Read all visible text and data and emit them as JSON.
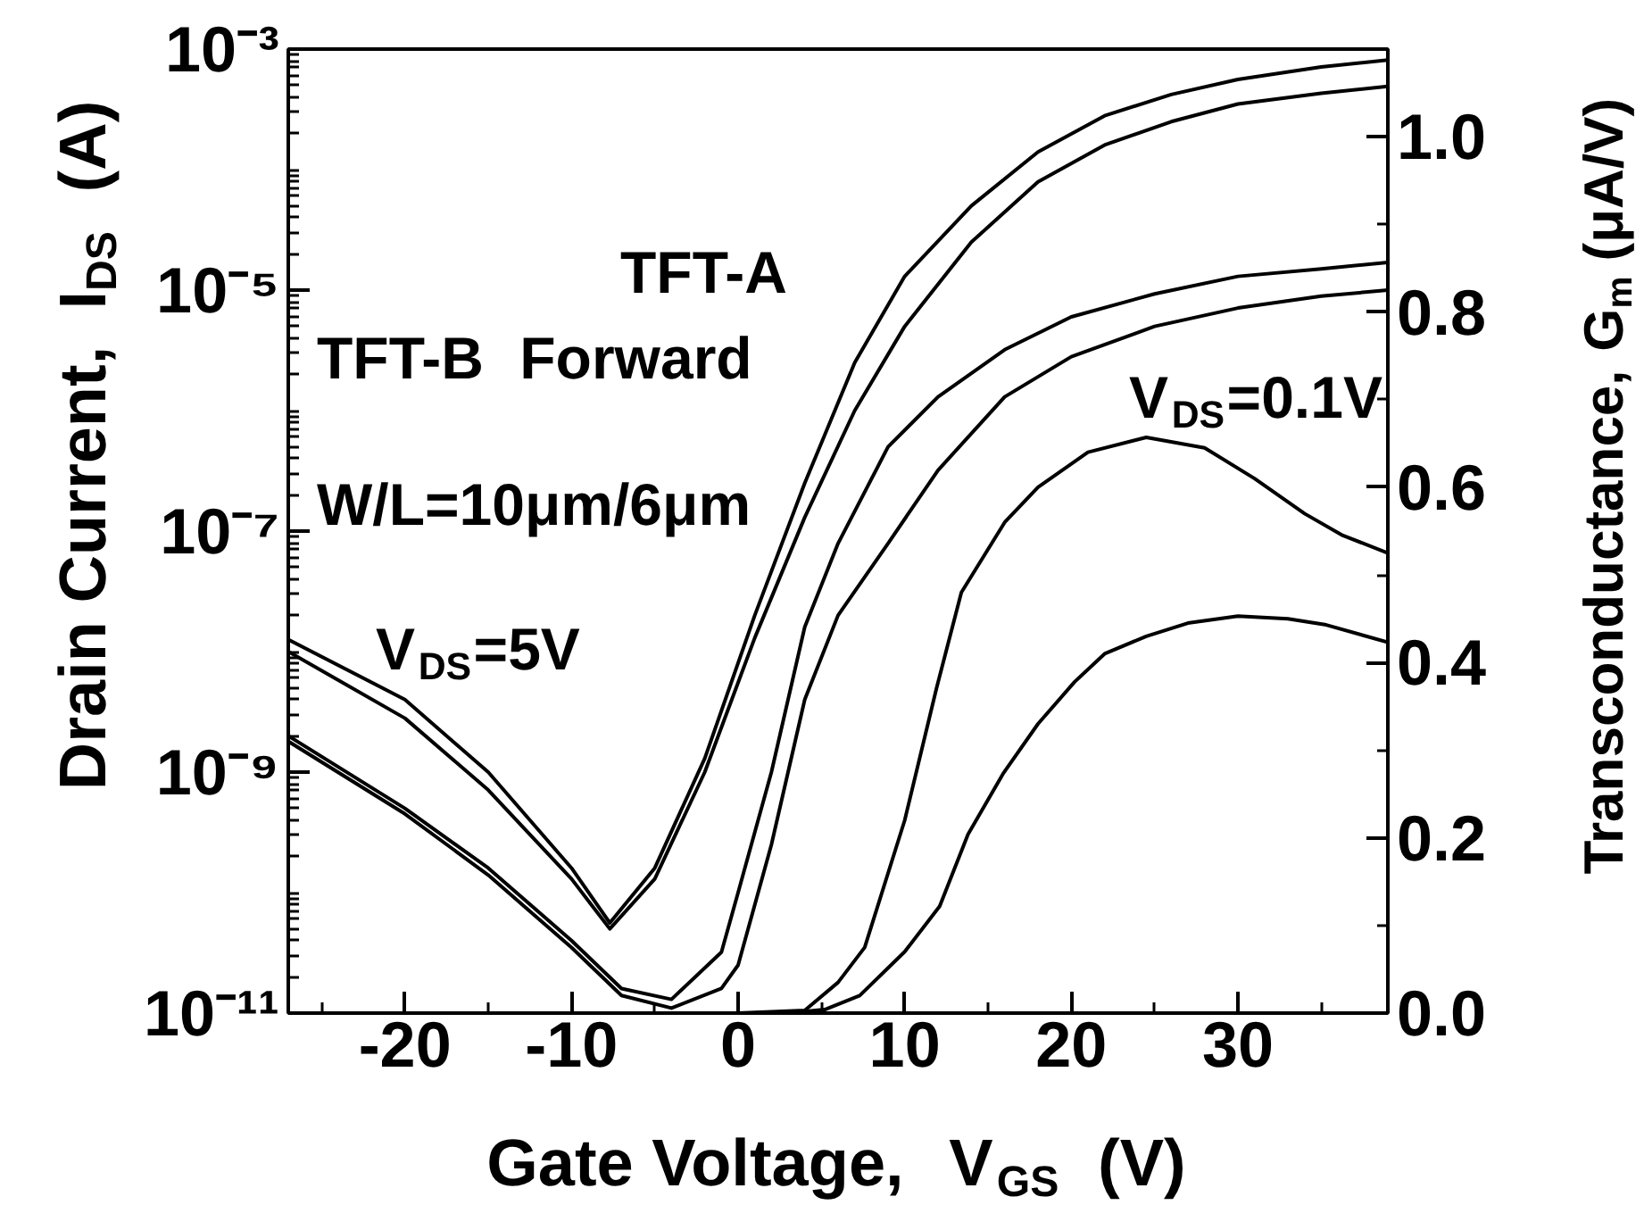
{
  "chart_data": {
    "type": "line",
    "xlabel": "Gate Voltage,  V$_{GS}$  (V)",
    "ylabel": "Drain Current,  I$_{DS}$  (A)",
    "y2label": "Transconductance, G$_{m}$ (μA/V)",
    "annotations": [
      "TFT-A",
      "TFT-B  Forward",
      "W/L=10μm/6μm",
      "V$_{DS}$=5V",
      "V$_{DS}$=0.1V"
    ],
    "log": "y",
    "xlim": [
      -27,
      39
    ],
    "xticks": [
      {
        "value": -25,
        "label": null
      },
      -20,
      {
        "value": -15,
        "label": null
      },
      -10,
      {
        "value": -5,
        "label": null
      },
      0,
      {
        "value": 5,
        "label": null
      },
      10,
      {
        "value": 15,
        "label": null
      },
      20,
      {
        "value": 25,
        "label": null
      },
      30,
      {
        "value": 35,
        "label": null
      }
    ],
    "ylim": [
      1e-11,
      0.001
    ],
    "yticks": [
      {
        "value": 1e-11,
        "label": "10⁻¹¹"
      },
      {
        "value": 1e-10,
        "label": null
      },
      {
        "value": 1e-09,
        "label": "10⁻⁹"
      },
      {
        "value": 1e-08,
        "label": null
      },
      {
        "value": 1e-07,
        "label": "10⁻⁷"
      },
      {
        "value": 1e-06,
        "label": null
      },
      {
        "value": 1e-05,
        "label": "10⁻⁵"
      },
      {
        "value": 0.0001,
        "label": null
      },
      {
        "value": 0.001,
        "label": "10⁻³"
      }
    ],
    "y2lim": [
      0,
      1.1
    ],
    "y2ticks": [
      {
        "value": 0,
        "label": "0.0"
      },
      {
        "value": 0.1,
        "label": null
      },
      {
        "value": 0.2,
        "label": "0.2"
      },
      {
        "value": 0.3,
        "label": null
      },
      {
        "value": 0.4,
        "label": "0.4"
      },
      {
        "value": 0.5,
        "label": null
      },
      {
        "value": 0.6,
        "label": "0.6"
      },
      {
        "value": 0.7,
        "label": null
      },
      {
        "value": 0.8,
        "label": "0.8"
      },
      {
        "value": 0.9,
        "label": null
      },
      {
        "value": 1.0,
        "label": "1.0"
      }
    ],
    "series": [
      {
        "color": "#000000",
        "x": [
          -27,
          -20,
          -15,
          -10,
          -7.7,
          -5,
          -2,
          1,
          4,
          7,
          10,
          14,
          18,
          22,
          26,
          30,
          35,
          39
        ],
        "values": [
          1.26e-08,
          4e-09,
          1e-09,
          1.6e-10,
          5.6e-11,
          1.6e-10,
          1.3e-09,
          2e-08,
          2.5e-07,
          2.5e-06,
          1.3e-05,
          5e-05,
          0.00014,
          0.00028,
          0.00042,
          0.00056,
          0.00071,
          0.00081
        ]
      },
      {
        "color": "#000000",
        "x": [
          -27,
          -20,
          -15,
          -10,
          -7.7,
          -5,
          -2,
          1,
          4,
          7,
          10,
          14,
          18,
          22,
          26,
          30,
          35,
          39
        ],
        "values": [
          1e-08,
          2.8e-09,
          7.1e-10,
          1.3e-10,
          5e-11,
          1.3e-10,
          1e-09,
          1.3e-08,
          1.3e-07,
          1e-06,
          5e-06,
          2.5e-05,
          7.9e-05,
          0.00016,
          0.00025,
          0.00035,
          0.00043,
          0.00049
        ]
      },
      {
        "color": "#000000",
        "x": [
          -27,
          -20,
          -15,
          -10,
          -7,
          -4,
          -1,
          0,
          2,
          4,
          6,
          9,
          12,
          16,
          20,
          25,
          30,
          35,
          39
        ],
        "values": [
          2e-09,
          5e-10,
          1.6e-10,
          4e-11,
          1.6e-11,
          1.3e-11,
          3.2e-11,
          1e-10,
          1e-09,
          1.6e-08,
          7.9e-08,
          5e-07,
          1.3e-06,
          3.2e-06,
          6e-06,
          9.3e-06,
          1.3e-05,
          1.5e-05,
          1.7e-05
        ]
      },
      {
        "color": "#000000",
        "x": [
          -27,
          -20,
          -15,
          -10,
          -7,
          -4,
          -1,
          0,
          2,
          4,
          6,
          9,
          12,
          16,
          20,
          25,
          30,
          35,
          39
        ],
        "values": [
          1.8e-09,
          4.5e-10,
          1.4e-10,
          3.5e-11,
          1.4e-11,
          1.1e-11,
          1.6e-11,
          2.5e-11,
          2.5e-10,
          4e-09,
          2e-08,
          7.9e-08,
          3.2e-07,
          1.3e-06,
          2.8e-06,
          5e-06,
          7.1e-06,
          8.9e-06,
          1e-05
        ]
      },
      {
        "color": "#000000",
        "axis": "y2",
        "x": [
          0,
          4,
          6,
          7.6,
          10,
          11.9,
          13.4,
          16,
          18,
          21,
          24.5,
          28,
          31,
          34,
          36.3,
          39
        ],
        "values": [
          0,
          0.003,
          0.035,
          0.075,
          0.22,
          0.37,
          0.48,
          0.56,
          0.6,
          0.64,
          0.657,
          0.645,
          0.61,
          0.57,
          0.545,
          0.525
        ]
      },
      {
        "color": "#000000",
        "axis": "y2",
        "x": [
          0,
          3,
          5.2,
          7.3,
          10,
          12.1,
          13.8,
          15.9,
          18,
          20.2,
          22,
          24.5,
          27,
          30,
          33,
          35.3,
          39
        ],
        "values": [
          0,
          0,
          0.004,
          0.02,
          0.07,
          0.122,
          0.204,
          0.273,
          0.33,
          0.378,
          0.41,
          0.43,
          0.445,
          0.453,
          0.45,
          0.443,
          0.423
        ]
      }
    ]
  }
}
